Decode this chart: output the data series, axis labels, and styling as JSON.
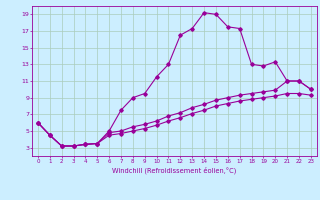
{
  "xlabel": "Windchill (Refroidissement éolien,°C)",
  "bg_color": "#cceeff",
  "line_color": "#990099",
  "grid_color": "#aaccbb",
  "xlim": [
    -0.5,
    23.5
  ],
  "ylim": [
    2.0,
    20.0
  ],
  "xticks": [
    0,
    1,
    2,
    3,
    4,
    5,
    6,
    7,
    8,
    9,
    10,
    11,
    12,
    13,
    14,
    15,
    16,
    17,
    18,
    19,
    20,
    21,
    22,
    23
  ],
  "yticks": [
    3,
    5,
    7,
    9,
    11,
    13,
    15,
    17,
    19
  ],
  "series1_x": [
    0,
    1,
    2,
    3,
    4,
    5,
    6,
    7,
    8,
    9,
    10,
    11,
    12,
    13,
    14,
    15,
    16,
    17,
    18,
    19,
    20,
    21,
    22,
    23
  ],
  "series1_y": [
    6.0,
    4.5,
    3.2,
    3.2,
    3.4,
    3.5,
    5.0,
    7.5,
    9.0,
    9.5,
    11.5,
    13.0,
    16.5,
    17.3,
    19.2,
    19.0,
    17.5,
    17.3,
    13.0,
    12.8,
    13.3,
    11.0,
    11.0,
    10.0
  ],
  "series2_x": [
    0,
    1,
    2,
    3,
    4,
    5,
    6,
    7,
    8,
    9,
    10,
    11,
    12,
    13,
    14,
    15,
    16,
    17,
    18,
    19,
    20,
    21,
    22,
    23
  ],
  "series2_y": [
    6.0,
    4.5,
    3.2,
    3.2,
    3.4,
    3.5,
    4.8,
    5.0,
    5.5,
    5.8,
    6.2,
    6.8,
    7.2,
    7.8,
    8.2,
    8.7,
    9.0,
    9.3,
    9.5,
    9.7,
    9.9,
    11.0,
    11.0,
    10.0
  ],
  "series3_x": [
    0,
    1,
    2,
    3,
    4,
    5,
    6,
    7,
    8,
    9,
    10,
    11,
    12,
    13,
    14,
    15,
    16,
    17,
    18,
    19,
    20,
    21,
    22,
    23
  ],
  "series3_y": [
    6.0,
    4.5,
    3.2,
    3.2,
    3.4,
    3.5,
    4.5,
    4.7,
    5.0,
    5.3,
    5.7,
    6.2,
    6.6,
    7.1,
    7.5,
    8.0,
    8.3,
    8.6,
    8.8,
    9.0,
    9.2,
    9.5,
    9.5,
    9.3
  ]
}
